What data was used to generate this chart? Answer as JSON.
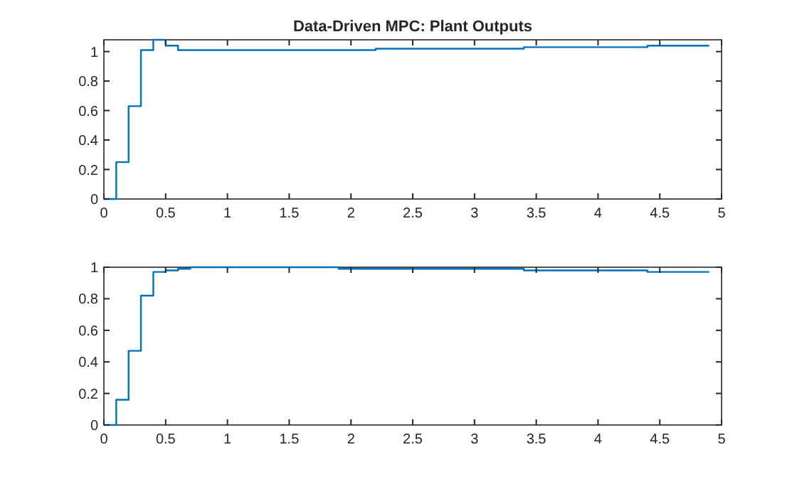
{
  "chart_data": [
    {
      "type": "step",
      "title": "Data-Driven MPC: Plant Outputs",
      "x": [
        0,
        0.1,
        0.2,
        0.3,
        0.4,
        0.5,
        0.6,
        2.2,
        3.4,
        4.4,
        4.9
      ],
      "series": [
        {
          "color": "#0072bd",
          "values": [
            0,
            0.25,
            0.63,
            1.01,
            1.08,
            1.04,
            1.01,
            1.02,
            1.03,
            1.04,
            1.04
          ]
        }
      ],
      "xlim": [
        0,
        5
      ],
      "xticks": [
        0,
        0.5,
        1,
        1.5,
        2,
        2.5,
        3,
        3.5,
        4,
        4.5,
        5
      ],
      "ylim": [
        0,
        1.08
      ],
      "yticks": [
        0,
        0.2,
        0.4,
        0.6,
        0.8,
        1
      ],
      "grid": false
    },
    {
      "type": "step",
      "x": [
        0,
        0.1,
        0.2,
        0.3,
        0.4,
        0.5,
        0.6,
        0.7,
        1.9,
        3.4,
        4.4,
        4.9
      ],
      "series": [
        {
          "color": "#0072bd",
          "values": [
            0,
            0.16,
            0.47,
            0.82,
            0.97,
            0.98,
            0.99,
            1,
            0.99,
            0.98,
            0.97,
            0.97
          ]
        }
      ],
      "xlim": [
        0,
        5
      ],
      "xticks": [
        0,
        0.5,
        1,
        1.5,
        2,
        2.5,
        3,
        3.5,
        4,
        4.5,
        5
      ],
      "ylim": [
        0,
        1
      ],
      "yticks": [
        0,
        0.2,
        0.4,
        0.6,
        0.8,
        1
      ],
      "grid": false
    }
  ]
}
